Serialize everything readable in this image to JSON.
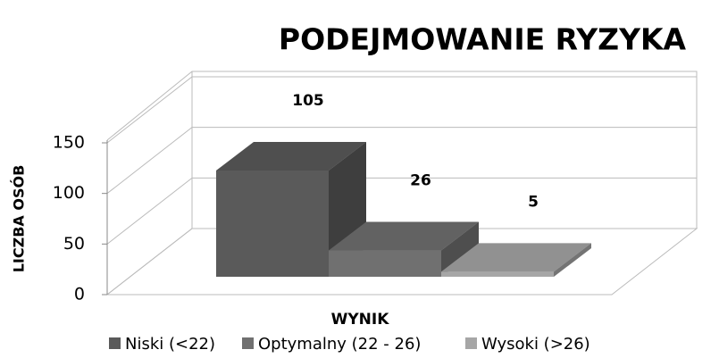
{
  "chart_data": {
    "type": "bar3d",
    "title": "PODEJMOWANIE RYZYKA",
    "y_label": "LICZBA OSÓB",
    "x_label": "WYNIK",
    "categories": [
      null
    ],
    "series": [
      {
        "name": "Niski (<22)",
        "color": "#5a5a5a",
        "values": [
          105
        ]
      },
      {
        "name": "Optymalny (22 - 26)",
        "color": "#707070",
        "values": [
          26
        ]
      },
      {
        "name": "Wysoki (>26)",
        "color": "#a6a6a6",
        "values": [
          5
        ]
      }
    ],
    "ylim": [
      0,
      150
    ],
    "yticks": [
      0,
      50,
      100,
      150
    ],
    "grid": true,
    "legend": "bottom"
  }
}
